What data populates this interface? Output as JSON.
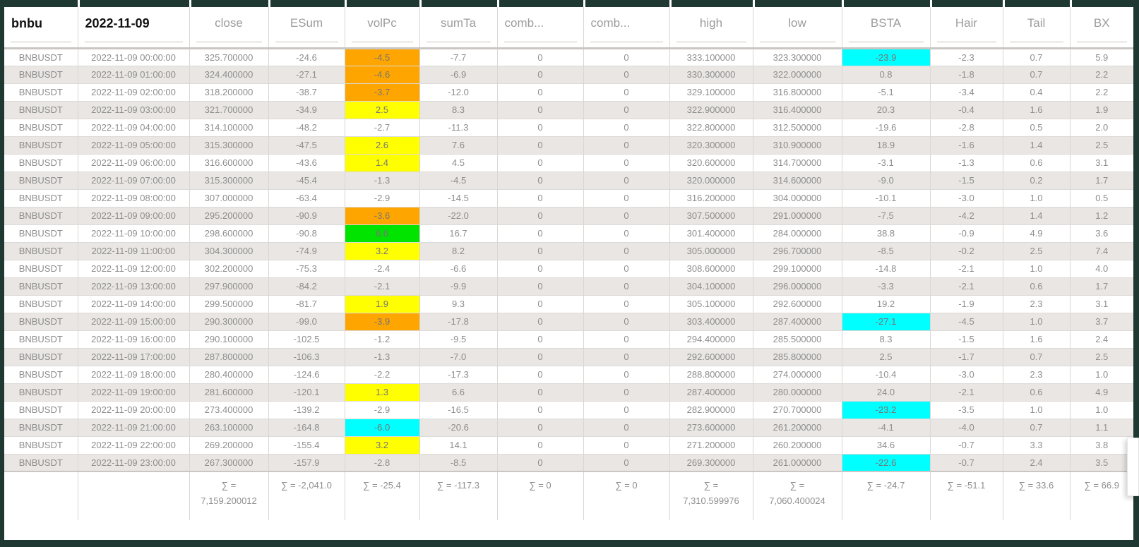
{
  "colors": {
    "orange": "#ffa500",
    "yellow": "#ffff00",
    "green": "#00e400",
    "cyan": "#00ffff",
    "frame": "#203832"
  },
  "table": {
    "columns": [
      {
        "label": "bnbu",
        "style": "title"
      },
      {
        "label": "2022-11-09",
        "style": "title"
      },
      {
        "label": "close"
      },
      {
        "label": "ESum"
      },
      {
        "label": "volPc"
      },
      {
        "label": "sumTa"
      },
      {
        "label": "comb...",
        "align": "left"
      },
      {
        "label": "comb...",
        "align": "left"
      },
      {
        "label": "high"
      },
      {
        "label": "low"
      },
      {
        "label": "BSTA"
      },
      {
        "label": "Hair"
      },
      {
        "label": "Tail"
      },
      {
        "label": "BX"
      }
    ],
    "rows": [
      {
        "cells": [
          "BNBUSDT",
          "2022-11-09 00:00:00",
          "325.700000",
          "-24.6",
          "-4.5",
          "-7.7",
          "0",
          "0",
          "333.100000",
          "323.300000",
          "-23.9",
          "-2.3",
          "0.7",
          "5.9"
        ],
        "highlights": {
          "4": "orange",
          "10": "cyan"
        }
      },
      {
        "cells": [
          "BNBUSDT",
          "2022-11-09 01:00:00",
          "324.400000",
          "-27.1",
          "-4.6",
          "-6.9",
          "0",
          "0",
          "330.300000",
          "322.000000",
          "0.8",
          "-1.8",
          "0.7",
          "2.2"
        ],
        "highlights": {
          "4": "orange"
        }
      },
      {
        "cells": [
          "BNBUSDT",
          "2022-11-09 02:00:00",
          "318.200000",
          "-38.7",
          "-3.7",
          "-12.0",
          "0",
          "0",
          "329.100000",
          "316.800000",
          "-5.1",
          "-3.4",
          "0.4",
          "2.2"
        ],
        "highlights": {
          "4": "orange"
        }
      },
      {
        "cells": [
          "BNBUSDT",
          "2022-11-09 03:00:00",
          "321.700000",
          "-34.9",
          "2.5",
          "8.3",
          "0",
          "0",
          "322.900000",
          "316.400000",
          "20.3",
          "-0.4",
          "1.6",
          "1.9"
        ],
        "highlights": {
          "4": "yellow"
        }
      },
      {
        "cells": [
          "BNBUSDT",
          "2022-11-09 04:00:00",
          "314.100000",
          "-48.2",
          "-2.7",
          "-11.3",
          "0",
          "0",
          "322.800000",
          "312.500000",
          "-19.6",
          "-2.8",
          "0.5",
          "2.0"
        ],
        "highlights": {}
      },
      {
        "cells": [
          "BNBUSDT",
          "2022-11-09 05:00:00",
          "315.300000",
          "-47.5",
          "2.6",
          "7.6",
          "0",
          "0",
          "320.300000",
          "310.900000",
          "18.9",
          "-1.6",
          "1.4",
          "2.5"
        ],
        "highlights": {
          "4": "yellow"
        }
      },
      {
        "cells": [
          "BNBUSDT",
          "2022-11-09 06:00:00",
          "316.600000",
          "-43.6",
          "1.4",
          "4.5",
          "0",
          "0",
          "320.600000",
          "314.700000",
          "-3.1",
          "-1.3",
          "0.6",
          "3.1"
        ],
        "highlights": {
          "4": "yellow"
        }
      },
      {
        "cells": [
          "BNBUSDT",
          "2022-11-09 07:00:00",
          "315.300000",
          "-45.4",
          "-1.3",
          "-4.5",
          "0",
          "0",
          "320.000000",
          "314.600000",
          "-9.0",
          "-1.5",
          "0.2",
          "1.7"
        ],
        "highlights": {}
      },
      {
        "cells": [
          "BNBUSDT",
          "2022-11-09 08:00:00",
          "307.000000",
          "-63.4",
          "-2.9",
          "-14.5",
          "0",
          "0",
          "316.200000",
          "304.000000",
          "-10.1",
          "-3.0",
          "1.0",
          "0.5"
        ],
        "highlights": {}
      },
      {
        "cells": [
          "BNBUSDT",
          "2022-11-09 09:00:00",
          "295.200000",
          "-90.9",
          "-3.6",
          "-22.0",
          "0",
          "0",
          "307.500000",
          "291.000000",
          "-7.5",
          "-4.2",
          "1.4",
          "1.2"
        ],
        "highlights": {
          "4": "orange"
        }
      },
      {
        "cells": [
          "BNBUSDT",
          "2022-11-09 10:00:00",
          "298.600000",
          "-90.8",
          "6.6",
          "16.7",
          "0",
          "0",
          "301.400000",
          "284.000000",
          "38.8",
          "-0.9",
          "4.9",
          "3.6"
        ],
        "highlights": {
          "4": "green"
        }
      },
      {
        "cells": [
          "BNBUSDT",
          "2022-11-09 11:00:00",
          "304.300000",
          "-74.9",
          "3.2",
          "8.2",
          "0",
          "0",
          "305.000000",
          "296.700000",
          "-8.5",
          "-0.2",
          "2.5",
          "7.4"
        ],
        "highlights": {
          "4": "yellow"
        }
      },
      {
        "cells": [
          "BNBUSDT",
          "2022-11-09 12:00:00",
          "302.200000",
          "-75.3",
          "-2.4",
          "-6.6",
          "0",
          "0",
          "308.600000",
          "299.100000",
          "-14.8",
          "-2.1",
          "1.0",
          "4.0"
        ],
        "highlights": {}
      },
      {
        "cells": [
          "BNBUSDT",
          "2022-11-09 13:00:00",
          "297.900000",
          "-84.2",
          "-2.1",
          "-9.9",
          "0",
          "0",
          "304.100000",
          "296.000000",
          "-3.3",
          "-2.1",
          "0.6",
          "1.7"
        ],
        "highlights": {}
      },
      {
        "cells": [
          "BNBUSDT",
          "2022-11-09 14:00:00",
          "299.500000",
          "-81.7",
          "1.9",
          "9.3",
          "0",
          "0",
          "305.100000",
          "292.600000",
          "19.2",
          "-1.9",
          "2.3",
          "3.1"
        ],
        "highlights": {
          "4": "yellow"
        }
      },
      {
        "cells": [
          "BNBUSDT",
          "2022-11-09 15:00:00",
          "290.300000",
          "-99.0",
          "-3.9",
          "-17.8",
          "0",
          "0",
          "303.400000",
          "287.400000",
          "-27.1",
          "-4.5",
          "1.0",
          "3.7"
        ],
        "highlights": {
          "4": "orange",
          "10": "cyan"
        }
      },
      {
        "cells": [
          "BNBUSDT",
          "2022-11-09 16:00:00",
          "290.100000",
          "-102.5",
          "-1.2",
          "-9.5",
          "0",
          "0",
          "294.400000",
          "285.500000",
          "8.3",
          "-1.5",
          "1.6",
          "2.4"
        ],
        "highlights": {}
      },
      {
        "cells": [
          "BNBUSDT",
          "2022-11-09 17:00:00",
          "287.800000",
          "-106.3",
          "-1.3",
          "-7.0",
          "0",
          "0",
          "292.600000",
          "285.800000",
          "2.5",
          "-1.7",
          "0.7",
          "2.5"
        ],
        "highlights": {}
      },
      {
        "cells": [
          "BNBUSDT",
          "2022-11-09 18:00:00",
          "280.400000",
          "-124.6",
          "-2.2",
          "-17.3",
          "0",
          "0",
          "288.800000",
          "274.000000",
          "-10.4",
          "-3.0",
          "2.3",
          "1.0"
        ],
        "highlights": {}
      },
      {
        "cells": [
          "BNBUSDT",
          "2022-11-09 19:00:00",
          "281.600000",
          "-120.1",
          "1.3",
          "6.6",
          "0",
          "0",
          "287.400000",
          "280.000000",
          "24.0",
          "-2.1",
          "0.6",
          "4.9"
        ],
        "highlights": {
          "4": "yellow"
        }
      },
      {
        "cells": [
          "BNBUSDT",
          "2022-11-09 20:00:00",
          "273.400000",
          "-139.2",
          "-2.9",
          "-16.5",
          "0",
          "0",
          "282.900000",
          "270.700000",
          "-23.2",
          "-3.5",
          "1.0",
          "1.0"
        ],
        "highlights": {
          "10": "cyan"
        }
      },
      {
        "cells": [
          "BNBUSDT",
          "2022-11-09 21:00:00",
          "263.100000",
          "-164.8",
          "-6.0",
          "-20.6",
          "0",
          "0",
          "273.600000",
          "261.200000",
          "-4.1",
          "-4.0",
          "0.7",
          "1.1"
        ],
        "highlights": {
          "4": "cyan"
        }
      },
      {
        "cells": [
          "BNBUSDT",
          "2022-11-09 22:00:00",
          "269.200000",
          "-155.4",
          "3.2",
          "14.1",
          "0",
          "0",
          "271.200000",
          "260.200000",
          "34.6",
          "-0.7",
          "3.3",
          "3.8"
        ],
        "highlights": {
          "4": "yellow"
        }
      },
      {
        "cells": [
          "BNBUSDT",
          "2022-11-09 23:00:00",
          "267.300000",
          "-157.9",
          "-2.8",
          "-8.5",
          "0",
          "0",
          "269.300000",
          "261.000000",
          "-22.6",
          "-0.7",
          "2.4",
          "3.5"
        ],
        "highlights": {
          "10": "cyan"
        }
      }
    ],
    "footer": [
      [],
      [],
      [
        "∑ =",
        "7,159.200012"
      ],
      [
        "∑ = -2,041.0"
      ],
      [
        "∑ = -25.4"
      ],
      [
        "∑ = -117.3"
      ],
      [
        "∑ = 0"
      ],
      [
        "∑ = 0"
      ],
      [
        "∑ =",
        "7,310.599976"
      ],
      [
        "∑ =",
        "7,060.400024"
      ],
      [
        "∑ = -24.7"
      ],
      [
        "∑ = -51.1"
      ],
      [
        "∑ = 33.6"
      ],
      [
        "∑ = 66.9"
      ]
    ]
  }
}
